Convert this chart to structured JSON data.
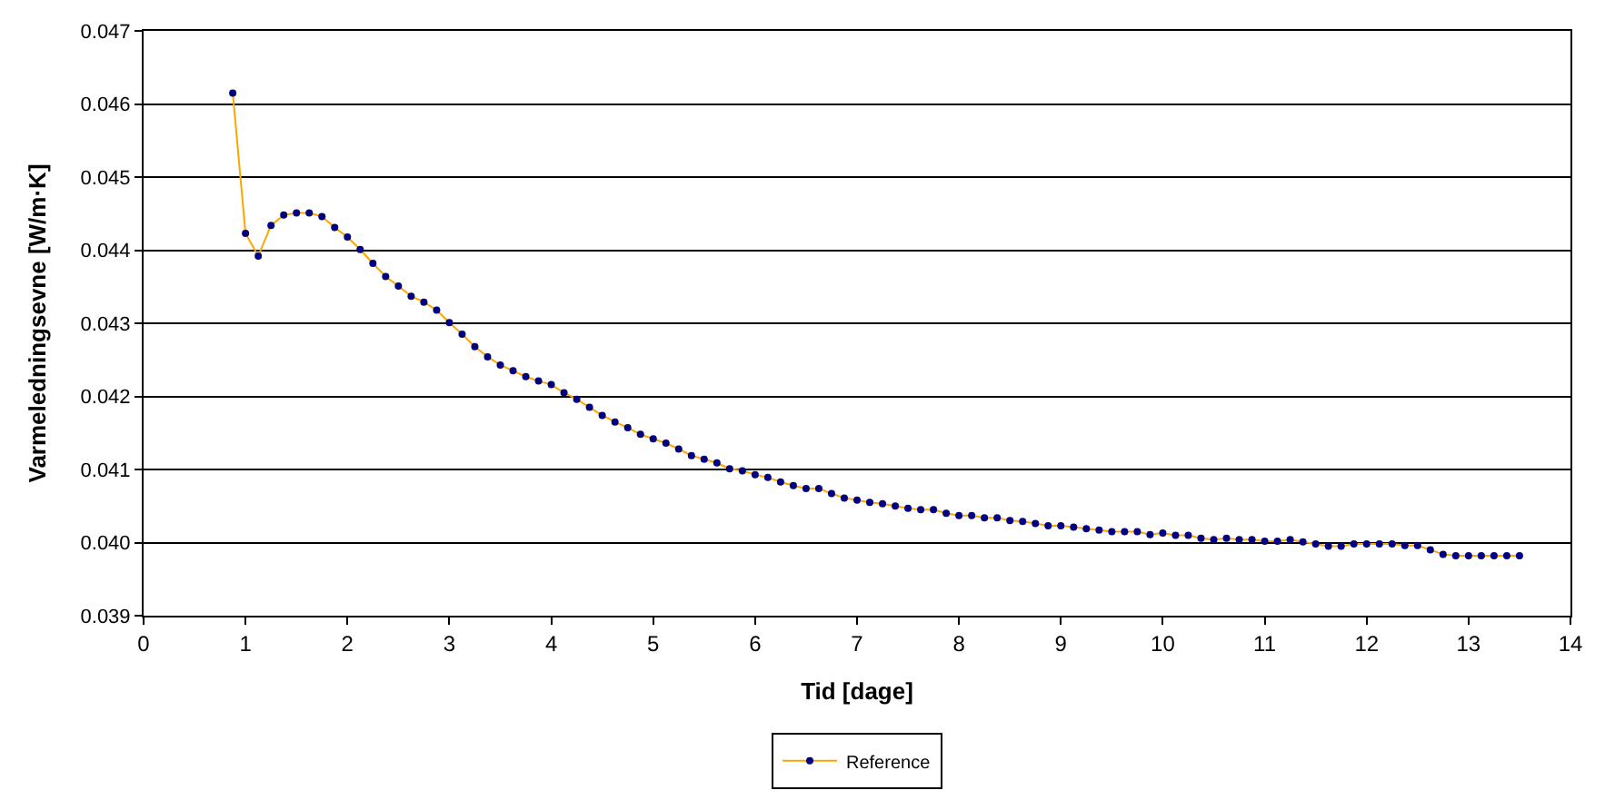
{
  "chart_data": {
    "type": "line",
    "xlabel": "Tid [dage]",
    "ylabel": "Varmeledningsevne [W/m·K]",
    "xlim": [
      0,
      14
    ],
    "xticks": [
      0,
      1,
      2,
      3,
      4,
      5,
      6,
      7,
      8,
      9,
      10,
      11,
      12,
      13,
      14
    ],
    "ylim": [
      0.039,
      0.047
    ],
    "yticks": [
      {
        "value": 0.039,
        "label": "0.039"
      },
      {
        "value": 0.04,
        "label": "0.040"
      },
      {
        "value": 0.041,
        "label": "0.041"
      },
      {
        "value": 0.042,
        "label": "0.042"
      },
      {
        "value": 0.043,
        "label": "0.043"
      },
      {
        "value": 0.044,
        "label": "0.044"
      },
      {
        "value": 0.045,
        "label": "0.045"
      },
      {
        "value": 0.046,
        "label": "0.046"
      },
      {
        "value": 0.047,
        "label": "0.047"
      }
    ],
    "grid": "y",
    "legend": "bottom",
    "marker": "circle",
    "line_style": "solid",
    "series": [
      {
        "name": "Reference",
        "color": "#ffa500",
        "colors": [
          "#000080",
          "#000080",
          "#000080",
          "#000080",
          "#000080",
          "#000080",
          "#000080",
          "#000080",
          "#000080",
          "#000080",
          "#000080",
          "#000080",
          "#000080",
          "#000080",
          "#000080",
          "#000080",
          "#000080",
          "#000080",
          "#000080",
          "#000080",
          "#000080",
          "#000080",
          "#000080",
          "#000080",
          "#000080",
          "#000080",
          "#000080",
          "#000080",
          "#000080",
          "#000080",
          "#000080",
          "#000080",
          "#000080",
          "#000080",
          "#000080",
          "#000080",
          "#000080",
          "#000080",
          "#000080",
          "#000080",
          "#000080",
          "#000080",
          "#000080",
          "#000080",
          "#000080",
          "#000080",
          "#000080",
          "#000080",
          "#000080",
          "#000080",
          "#000080",
          "#000080",
          "#000080",
          "#000080",
          "#000080",
          "#000080",
          "#000080",
          "#000080",
          "#000080",
          "#000080",
          "#000080",
          "#000080",
          "#000080",
          "#000080",
          "#000080",
          "#000080",
          "#000080",
          "#000080",
          "#000080",
          "#000080",
          "#000080",
          "#000080",
          "#000080",
          "#000080",
          "#000080",
          "#000080",
          "#000080",
          "#000080",
          "#000080",
          "#000080",
          "#000080",
          "#000080",
          "#000080",
          "#000080",
          "#000080",
          "#000080",
          "#000080",
          "#000080",
          "#000080",
          "#000080",
          "#000080",
          "#000080",
          "#000080",
          "#000080",
          "#000080",
          "#000080",
          "#000080",
          "#000080",
          "#000080",
          "#000080",
          "#000080",
          "#000080"
        ],
        "x": [
          0.875,
          1.0,
          1.125,
          1.25,
          1.375,
          1.5,
          1.625,
          1.75,
          1.875,
          2.0,
          2.125,
          2.25,
          2.375,
          2.5,
          2.625,
          2.75,
          2.875,
          3.0,
          3.125,
          3.25,
          3.375,
          3.5,
          3.625,
          3.75,
          3.875,
          4.0,
          4.125,
          4.25,
          4.375,
          4.5,
          4.625,
          4.75,
          4.875,
          5.0,
          5.125,
          5.25,
          5.375,
          5.5,
          5.625,
          5.75,
          5.875,
          6.0,
          6.125,
          6.25,
          6.375,
          6.5,
          6.625,
          6.75,
          6.875,
          7.0,
          7.125,
          7.25,
          7.375,
          7.5,
          7.625,
          7.75,
          7.875,
          8.0,
          8.125,
          8.25,
          8.375,
          8.5,
          8.625,
          8.75,
          8.875,
          9.0,
          9.125,
          9.25,
          9.375,
          9.5,
          9.625,
          9.75,
          9.875,
          10.0,
          10.125,
          10.25,
          10.375,
          10.5,
          10.625,
          10.75,
          10.875,
          11.0,
          11.125,
          11.25,
          11.375,
          11.5,
          11.625,
          11.75,
          11.875,
          12.0,
          12.125,
          12.25,
          12.375,
          12.5,
          12.625,
          12.75,
          12.875,
          13.0,
          13.125,
          13.25,
          13.375,
          13.5
        ],
        "values": [
          0.04615,
          0.04423,
          0.04392,
          0.04434,
          0.04448,
          0.04451,
          0.04451,
          0.04446,
          0.04431,
          0.04418,
          0.04401,
          0.04382,
          0.04364,
          0.04351,
          0.04337,
          0.04329,
          0.04318,
          0.04301,
          0.04285,
          0.04268,
          0.04254,
          0.04243,
          0.04235,
          0.04227,
          0.04221,
          0.04216,
          0.04205,
          0.04196,
          0.04185,
          0.04174,
          0.04165,
          0.04157,
          0.04148,
          0.04142,
          0.04136,
          0.04128,
          0.04119,
          0.04114,
          0.04109,
          0.04101,
          0.04098,
          0.04093,
          0.04089,
          0.04083,
          0.04078,
          0.04074,
          0.04074,
          0.04067,
          0.04061,
          0.04058,
          0.04055,
          0.04053,
          0.0405,
          0.04047,
          0.04045,
          0.04045,
          0.0404,
          0.04037,
          0.04037,
          0.04034,
          0.04034,
          0.0403,
          0.04029,
          0.04026,
          0.04023,
          0.04023,
          0.04021,
          0.04019,
          0.04017,
          0.04015,
          0.04015,
          0.04015,
          0.04011,
          0.04013,
          0.0401,
          0.0401,
          0.04006,
          0.04004,
          0.04006,
          0.04004,
          0.04004,
          0.04002,
          0.04002,
          0.04004,
          0.04001,
          0.03998,
          0.03995,
          0.03995,
          0.03998,
          0.03998,
          0.03998,
          0.03998,
          0.03996,
          0.03996,
          0.0399,
          0.03984,
          0.03982,
          0.03982,
          0.03982,
          0.03982,
          0.03982,
          0.03982
        ]
      }
    ]
  }
}
